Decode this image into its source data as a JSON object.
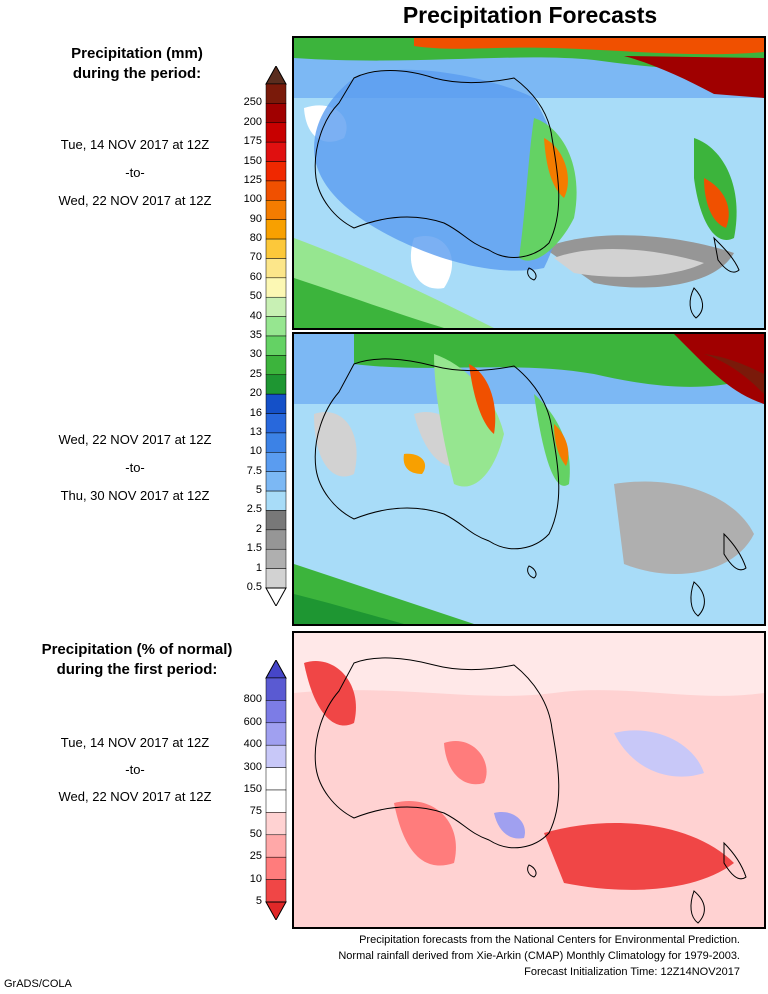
{
  "title": "Precipitation Forecasts",
  "panel_top_heading": [
    "Precipitation (mm)",
    "during the period:"
  ],
  "period1": {
    "start": "Tue, 14 NOV 2017 at 12Z",
    "sep": "-to-",
    "end": "Wed, 22 NOV 2017 at 12Z"
  },
  "period2": {
    "start": "Wed, 22 NOV 2017 at 12Z",
    "sep": "-to-",
    "end": "Thu, 30 NOV 2017 at 12Z"
  },
  "panel_bottom_heading": [
    "Precipitation (% of normal)",
    "during the first period:"
  ],
  "period3": {
    "start": "Tue, 14 NOV 2017 at 12Z",
    "sep": "-to-",
    "end": "Wed, 22 NOV 2017 at 12Z"
  },
  "mm_scale": {
    "labels": [
      "250",
      "200",
      "175",
      "150",
      "125",
      "100",
      "90",
      "80",
      "70",
      "60",
      "50",
      "40",
      "35",
      "30",
      "25",
      "20",
      "16",
      "13",
      "10",
      "7.5",
      "5",
      "2.5",
      "2",
      "1.5",
      "1",
      "0.5"
    ],
    "colors": [
      "#7a1a0a",
      "#a00000",
      "#c80000",
      "#e01010",
      "#f02800",
      "#f05000",
      "#f47c00",
      "#f8a000",
      "#fcc83a",
      "#fce68a",
      "#fcf8b4",
      "#c8f0b4",
      "#96e690",
      "#64d264",
      "#3cb43c",
      "#1e9632",
      "#1450c8",
      "#2868dc",
      "#3c82e6",
      "#5a9cf0",
      "#7cb8f4",
      "#a8dcf8",
      "#787878",
      "#969696",
      "#afafaf",
      "#d2d2d2"
    ]
  },
  "pct_scale": {
    "labels": [
      "800",
      "600",
      "400",
      "300",
      "150",
      "75",
      "50",
      "25",
      "10",
      "5"
    ],
    "colors": [
      "#5a5ad2",
      "#7c7ce6",
      "#a0a0f0",
      "#c8c8f8",
      "#ffffff",
      "#ffffff",
      "#ffd2d2",
      "#ffa8a8",
      "#ff7c7c",
      "#f04646"
    ]
  },
  "footer_lines": [
    "Precipitation forecasts from the National Centers for Environmental Prediction.",
    "Normal rainfall derived from Xie-Arkin (CMAP) Monthly Climatology for 1979-2003.",
    "Forecast Initialization Time: 12Z14NOV2017"
  ],
  "credit": "GrADS/COLA",
  "colors": {
    "ocean_light": "#a8dcf8",
    "ocean_mid": "#7cb8f4",
    "land_dry": "#ffffff"
  }
}
